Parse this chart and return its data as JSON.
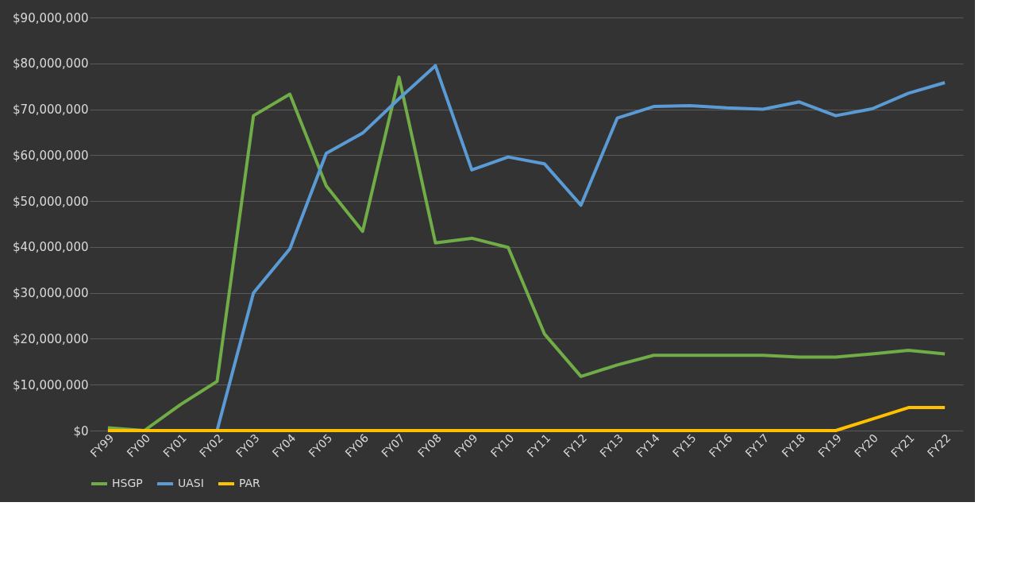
{
  "chart_data": {
    "type": "line",
    "categories": [
      "FY99",
      "FY00",
      "FY01",
      "FY02",
      "FY03",
      "FY04",
      "FY05",
      "FY06",
      "FY07",
      "FY08",
      "FY09",
      "FY10",
      "FY11",
      "FY12",
      "FY13",
      "FY14",
      "FY15",
      "FY16",
      "FY17",
      "FY18",
      "FY19",
      "FY20",
      "FY21",
      "FY22"
    ],
    "series": [
      {
        "name": "HSGP",
        "color": "#70ad47",
        "values": [
          600000,
          0,
          5700000,
          10700000,
          68600000,
          73300000,
          53300000,
          43400000,
          77000000,
          40900000,
          41900000,
          39900000,
          21000000,
          11800000,
          14300000,
          16400000,
          16400000,
          16400000,
          16400000,
          16000000,
          16000000,
          16700000,
          17500000,
          16700000
        ]
      },
      {
        "name": "UASI",
        "color": "#5b9bd5",
        "values": [
          null,
          null,
          null,
          0,
          30000000,
          39600000,
          60400000,
          64800000,
          72300000,
          79500000,
          56800000,
          59600000,
          58100000,
          49100000,
          68100000,
          70600000,
          70800000,
          70300000,
          70000000,
          71600000,
          68600000,
          70100000,
          73500000,
          75800000
        ]
      },
      {
        "name": "PAR",
        "color": "#ffc000",
        "values": [
          0,
          0,
          0,
          0,
          0,
          0,
          0,
          0,
          0,
          0,
          0,
          0,
          0,
          0,
          0,
          0,
          0,
          0,
          0,
          0,
          0,
          2500000,
          5000000,
          5000000
        ]
      }
    ],
    "ylim": [
      0,
      90000000
    ],
    "yticks": [
      {
        "value": 0,
        "label": "$0"
      },
      {
        "value": 10000000,
        "label": "$10,000,000"
      },
      {
        "value": 20000000,
        "label": "$20,000,000"
      },
      {
        "value": 30000000,
        "label": "$30,000,000"
      },
      {
        "value": 40000000,
        "label": "$40,000,000"
      },
      {
        "value": 50000000,
        "label": "$50,000,000"
      },
      {
        "value": 60000000,
        "label": "$60,000,000"
      },
      {
        "value": 70000000,
        "label": "$70,000,000"
      },
      {
        "value": 80000000,
        "label": "$80,000,000"
      },
      {
        "value": 90000000,
        "label": "$90,000,000"
      }
    ],
    "grid": "y",
    "legend": "bottom",
    "marker": "none",
    "line_style": "solid"
  }
}
